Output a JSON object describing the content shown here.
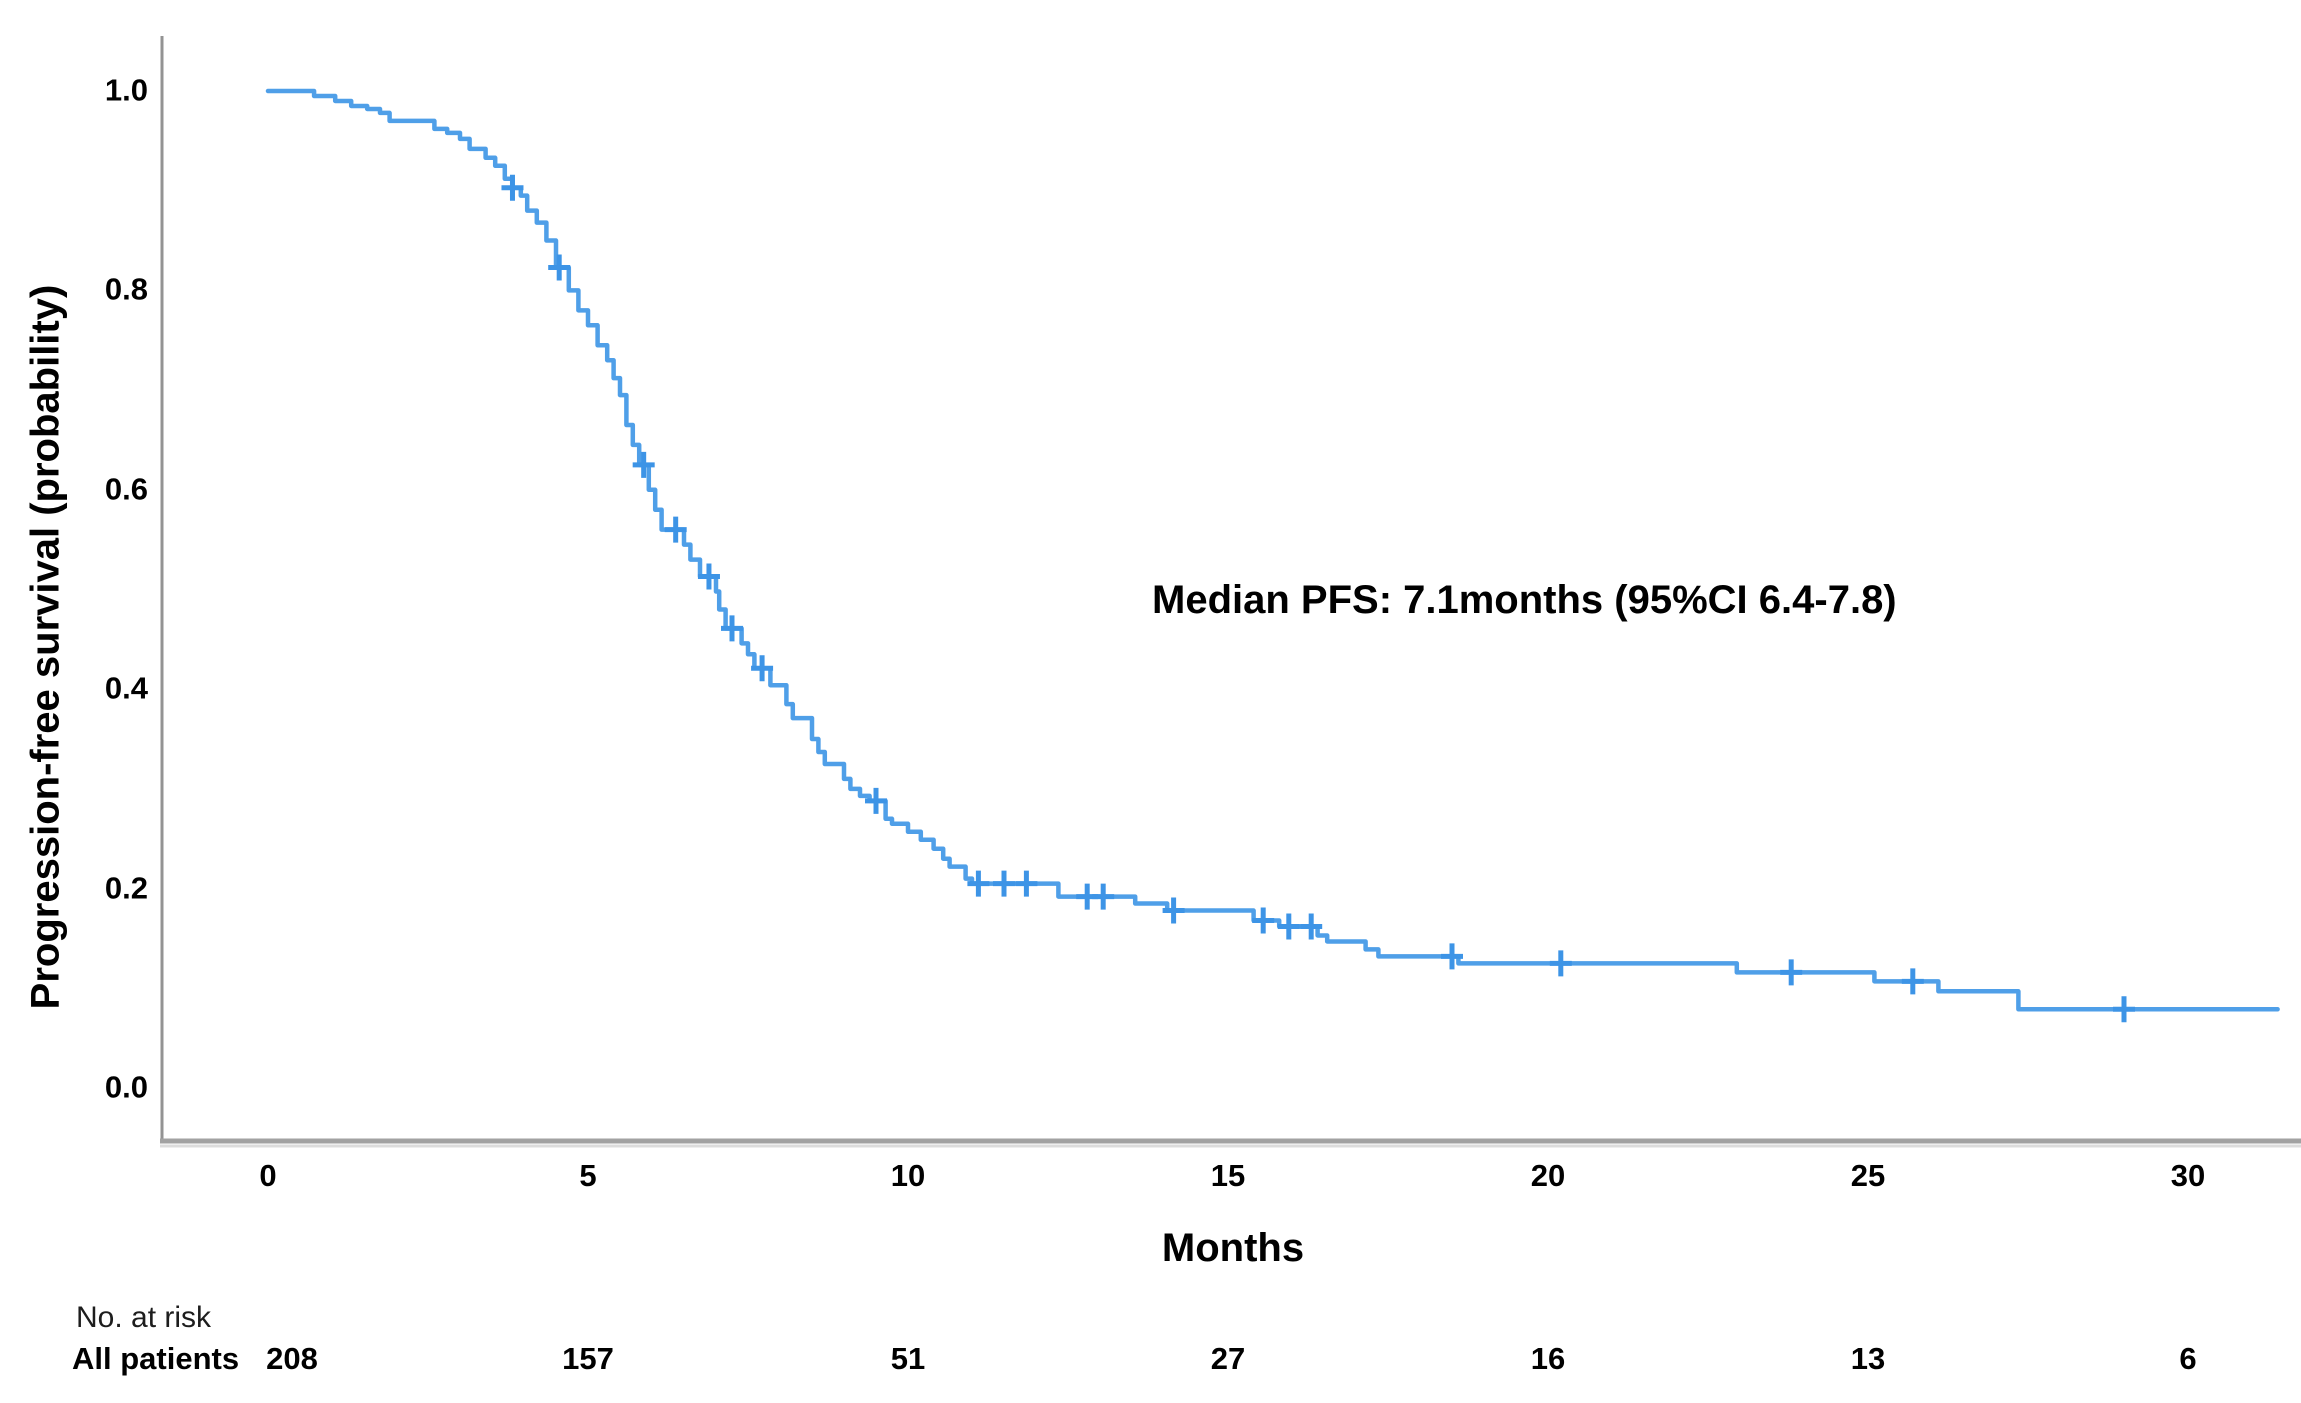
{
  "figure": {
    "background": "#ffffff"
  },
  "chart_data": {
    "type": "line",
    "subtype": "kaplan-meier-step",
    "title": "",
    "xlabel": "Months",
    "ylabel": "Progression-free survival (probability)",
    "annotation": "Median PFS: 7.1months (95%CI 6.4-7.8)",
    "x_ticks": [
      "0",
      "5",
      "10",
      "15",
      "20",
      "25",
      "30"
    ],
    "y_ticks": [
      "1.0",
      "0.8",
      "0.6",
      "0.4",
      "0.2",
      "0.0"
    ],
    "xlim": [
      0,
      31.4
    ],
    "ylim": [
      0.0,
      1.0
    ],
    "grid": false,
    "legend_position": "none",
    "line_color": "#4f9fe8",
    "censor_color": "#3d94e6",
    "axis_color": "#a2a2a2",
    "series": [
      {
        "name": "All patients",
        "end_month": 31.4,
        "km_curve": [
          [
            0,
            1.0
          ],
          [
            0.72,
            0.995
          ],
          [
            1.05,
            0.99
          ],
          [
            1.3,
            0.985
          ],
          [
            1.55,
            0.982
          ],
          [
            1.75,
            0.978
          ],
          [
            1.9,
            0.97
          ],
          [
            2.6,
            0.962
          ],
          [
            2.8,
            0.958
          ],
          [
            3.0,
            0.952
          ],
          [
            3.15,
            0.942
          ],
          [
            3.4,
            0.933
          ],
          [
            3.55,
            0.925
          ],
          [
            3.7,
            0.912
          ],
          [
            3.82,
            0.903
          ],
          [
            3.95,
            0.895
          ],
          [
            4.05,
            0.88
          ],
          [
            4.2,
            0.868
          ],
          [
            4.35,
            0.85
          ],
          [
            4.5,
            0.823
          ],
          [
            4.7,
            0.8
          ],
          [
            4.85,
            0.78
          ],
          [
            5.0,
            0.765
          ],
          [
            5.15,
            0.745
          ],
          [
            5.3,
            0.73
          ],
          [
            5.4,
            0.712
          ],
          [
            5.5,
            0.695
          ],
          [
            5.6,
            0.665
          ],
          [
            5.7,
            0.645
          ],
          [
            5.8,
            0.625
          ],
          [
            5.95,
            0.6
          ],
          [
            6.05,
            0.58
          ],
          [
            6.15,
            0.56
          ],
          [
            6.5,
            0.545
          ],
          [
            6.6,
            0.53
          ],
          [
            6.75,
            0.513
          ],
          [
            7.0,
            0.498
          ],
          [
            7.05,
            0.48
          ],
          [
            7.15,
            0.461
          ],
          [
            7.4,
            0.446
          ],
          [
            7.5,
            0.435
          ],
          [
            7.6,
            0.421
          ],
          [
            7.85,
            0.404
          ],
          [
            8.1,
            0.385
          ],
          [
            8.2,
            0.371
          ],
          [
            8.5,
            0.35
          ],
          [
            8.6,
            0.337
          ],
          [
            8.7,
            0.325
          ],
          [
            9.0,
            0.31
          ],
          [
            9.1,
            0.3
          ],
          [
            9.25,
            0.293
          ],
          [
            9.4,
            0.288
          ],
          [
            9.65,
            0.27
          ],
          [
            9.75,
            0.265
          ],
          [
            10.0,
            0.257
          ],
          [
            10.2,
            0.249
          ],
          [
            10.4,
            0.24
          ],
          [
            10.55,
            0.23
          ],
          [
            10.65,
            0.222
          ],
          [
            10.9,
            0.21
          ],
          [
            11.0,
            0.205
          ],
          [
            12.35,
            0.192
          ],
          [
            13.55,
            0.185
          ],
          [
            14.05,
            0.178
          ],
          [
            15.4,
            0.168
          ],
          [
            15.8,
            0.162
          ],
          [
            16.4,
            0.153
          ],
          [
            16.55,
            0.147
          ],
          [
            17.15,
            0.139
          ],
          [
            17.35,
            0.132
          ],
          [
            18.6,
            0.125
          ],
          [
            22.95,
            0.116
          ],
          [
            25.1,
            0.107
          ],
          [
            26.1,
            0.097
          ],
          [
            27.35,
            0.079
          ]
        ],
        "censor_marks": [
          [
            3.82,
            0.903
          ],
          [
            4.55,
            0.823
          ],
          [
            5.87,
            0.625
          ],
          [
            6.37,
            0.56
          ],
          [
            6.89,
            0.513
          ],
          [
            7.25,
            0.461
          ],
          [
            7.72,
            0.421
          ],
          [
            9.5,
            0.288
          ],
          [
            11.1,
            0.205
          ],
          [
            11.5,
            0.205
          ],
          [
            11.85,
            0.205
          ],
          [
            12.8,
            0.192
          ],
          [
            13.05,
            0.192
          ],
          [
            14.15,
            0.178
          ],
          [
            15.55,
            0.168
          ],
          [
            15.95,
            0.162
          ],
          [
            16.3,
            0.162
          ],
          [
            18.5,
            0.132
          ],
          [
            20.2,
            0.125
          ],
          [
            23.8,
            0.116
          ],
          [
            25.7,
            0.107
          ],
          [
            29.0,
            0.079
          ]
        ]
      }
    ]
  },
  "risk_table": {
    "header": "No. at risk",
    "months": [
      0,
      5,
      10,
      15,
      20,
      25,
      30
    ],
    "rows": [
      {
        "label": "All patients",
        "values": [
          "208",
          "157",
          "51",
          "27",
          "16",
          "13",
          "6"
        ]
      }
    ]
  }
}
